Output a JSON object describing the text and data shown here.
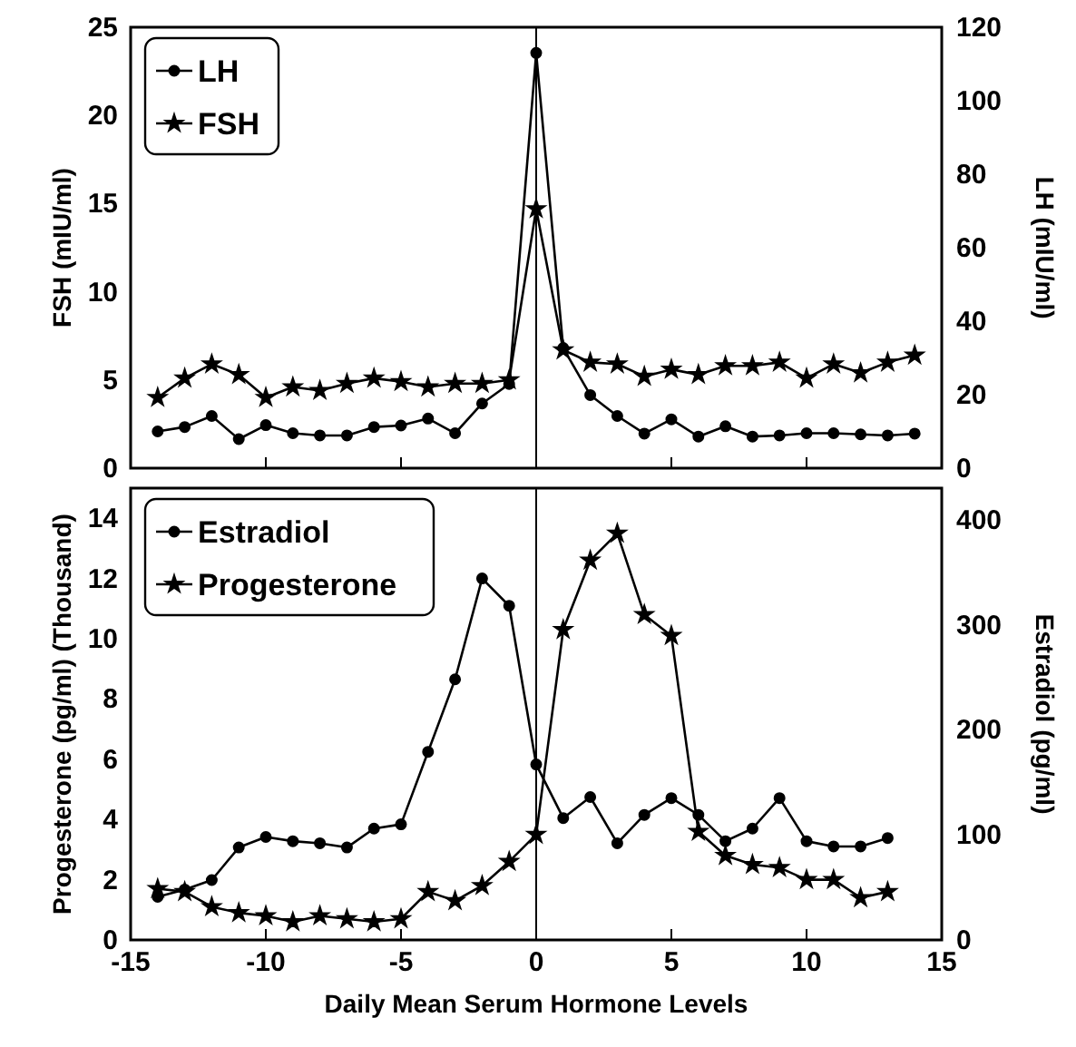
{
  "chart_data": [
    {
      "type": "line",
      "ylabel": "FSH (mIU/ml)",
      "y2label": "LH (mIU/ml)",
      "xlim": [
        -15,
        15
      ],
      "xticks": [
        -15,
        -10,
        -5,
        0,
        5,
        10,
        15
      ],
      "ylim": [
        0,
        25
      ],
      "yticks": [
        0,
        5,
        10,
        15,
        20,
        25
      ],
      "y2lim": [
        0,
        120
      ],
      "y2ticks": [
        0,
        20,
        40,
        60,
        80,
        100,
        120
      ],
      "tick_labels": "y",
      "legend": "top left",
      "line_style": "solid",
      "x": [
        -14,
        -13,
        -12,
        -11,
        -10,
        -9,
        -8,
        -7,
        -6,
        -5,
        -4,
        -3,
        -2,
        -1,
        0,
        1,
        2,
        3,
        4,
        5,
        6,
        7,
        8,
        9,
        10,
        11,
        12,
        13,
        14
      ],
      "ref_lines": [
        {
          "axis": "x",
          "value": 0,
          "color": "#000000"
        }
      ],
      "series": [
        {
          "name": "LH",
          "color": "#000000",
          "axis": "y2",
          "marker": "circle",
          "values": [
            10,
            11.2,
            14.2,
            7.9,
            11.7,
            9.5,
            8.9,
            8.9,
            11.2,
            11.6,
            13.5,
            9.5,
            17.6,
            22.9,
            113,
            32.7,
            19.9,
            14.2,
            9.4,
            13.3,
            8.6,
            11.4,
            8.6,
            8.9,
            9.5,
            9.5,
            9.2,
            8.9,
            9.4
          ]
        },
        {
          "name": "FSH",
          "color": "#000000",
          "axis": "y",
          "marker": "star",
          "values": [
            4.0,
            5.1,
            5.9,
            5.3,
            4.0,
            4.6,
            4.4,
            4.8,
            5.1,
            4.9,
            4.6,
            4.8,
            4.8,
            5.0,
            14.7,
            6.7,
            6.0,
            5.9,
            5.2,
            5.6,
            5.3,
            5.8,
            5.8,
            6.0,
            5.1,
            5.9,
            5.4,
            6.0,
            6.4
          ]
        }
      ]
    },
    {
      "type": "line",
      "xlabel": "Daily Mean Serum  Hormone Levels",
      "ylabel": "Progesterone (pg/ml) (Thousand)",
      "y2label": "Estradiol (pg/ml)",
      "xlim": [
        -15,
        15
      ],
      "xticks": [
        -15,
        -10,
        -5,
        0,
        5,
        10,
        15
      ],
      "ylim": [
        0,
        15
      ],
      "yticks": [
        0,
        2,
        4,
        6,
        8,
        10,
        12,
        14
      ],
      "y2lim": [
        0,
        430
      ],
      "y2ticks": [
        0,
        100,
        200,
        300,
        400
      ],
      "legend": "top left",
      "line_style": "solid",
      "x": [
        -14,
        -13,
        -12,
        -11,
        -10,
        -9,
        -8,
        -7,
        -6,
        -5,
        -4,
        -3,
        -2,
        -1,
        0,
        1,
        2,
        3,
        4,
        5,
        6,
        7,
        8,
        9,
        10,
        11,
        12,
        13
      ],
      "ref_lines": [
        {
          "axis": "x",
          "value": 0,
          "color": "#000000"
        }
      ],
      "series": [
        {
          "name": "Estradiol",
          "color": "#000000",
          "axis": "y2",
          "marker": "circle",
          "values": [
            41,
            48,
            57,
            88,
            98,
            94,
            92,
            88,
            106,
            110,
            179,
            248,
            344,
            318,
            167,
            116,
            136,
            92,
            119,
            135,
            119,
            94,
            106,
            135,
            94,
            89,
            89,
            97
          ]
        },
        {
          "name": "Progesterone",
          "color": "#000000",
          "axis": "y",
          "marker": "star",
          "values": [
            1.7,
            1.6,
            1.1,
            0.9,
            0.8,
            0.6,
            0.8,
            0.7,
            0.6,
            0.7,
            1.6,
            1.3,
            1.8,
            2.6,
            3.5,
            10.3,
            12.6,
            13.5,
            10.8,
            10.1,
            3.6,
            2.8,
            2.5,
            2.4,
            2.0,
            2.0,
            1.4,
            1.6
          ]
        }
      ]
    }
  ]
}
